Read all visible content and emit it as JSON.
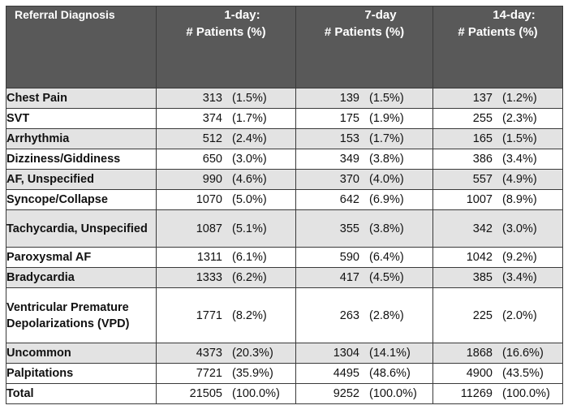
{
  "headers": {
    "diagnosis": "Referral Diagnosis",
    "d1": [
      "1-day:",
      "# Patients (%)"
    ],
    "d7": [
      "7-day",
      "# Patients (%)"
    ],
    "d14": [
      "14-day:",
      "# Patients (%)"
    ]
  },
  "rows": [
    {
      "label": "Chest Pain",
      "d1": [
        "313",
        "(1.5%)"
      ],
      "d7": [
        "139",
        "(1.5%)"
      ],
      "d14": [
        "137",
        "(1.2%)"
      ]
    },
    {
      "label": "SVT",
      "d1": [
        "374",
        "(1.7%)"
      ],
      "d7": [
        "175",
        "(1.9%)"
      ],
      "d14": [
        "255",
        "(2.3%)"
      ]
    },
    {
      "label": "Arrhythmia",
      "d1": [
        "512",
        "(2.4%)"
      ],
      "d7": [
        "153",
        "(1.7%)"
      ],
      "d14": [
        "165",
        "(1.5%)"
      ]
    },
    {
      "label": "Dizziness/Giddiness",
      "d1": [
        "650",
        "(3.0%)"
      ],
      "d7": [
        "349",
        "(3.8%)"
      ],
      "d14": [
        "386",
        "(3.4%)"
      ]
    },
    {
      "label": "AF, Unspecified",
      "d1": [
        "990",
        "(4.6%)"
      ],
      "d7": [
        "370",
        "(4.0%)"
      ],
      "d14": [
        "557",
        "(4.9%)"
      ]
    },
    {
      "label": "Syncope/Collapse",
      "d1": [
        "1070",
        "(5.0%)"
      ],
      "d7": [
        "642",
        "(6.9%)"
      ],
      "d14": [
        "1007",
        "(8.9%)"
      ]
    },
    {
      "label": "Tachycardia, Unspecified",
      "d1": [
        "1087",
        "(5.1%)"
      ],
      "d7": [
        "355",
        "(3.8%)"
      ],
      "d14": [
        "342",
        "(3.0%)"
      ]
    },
    {
      "label": "Paroxysmal AF",
      "d1": [
        "1311",
        "(6.1%)"
      ],
      "d7": [
        "590",
        "(6.4%)"
      ],
      "d14": [
        "1042",
        "(9.2%)"
      ]
    },
    {
      "label": "Bradycardia",
      "d1": [
        "1333",
        "(6.2%)"
      ],
      "d7": [
        "417",
        "(4.5%)"
      ],
      "d14": [
        "385",
        "(3.4%)"
      ]
    },
    {
      "label": "Ventricular Premature Depolarizations (VPD)",
      "d1": [
        "1771",
        "(8.2%)"
      ],
      "d7": [
        "263",
        "(2.8%)"
      ],
      "d14": [
        "225",
        "(2.0%)"
      ]
    },
    {
      "label": "Uncommon",
      "d1": [
        "4373",
        "(20.3%)"
      ],
      "d7": [
        "1304",
        "(14.1%)"
      ],
      "d14": [
        "1868",
        "(16.6%)"
      ]
    },
    {
      "label": "Palpitations",
      "d1": [
        "7721",
        "(35.9%)"
      ],
      "d7": [
        "4495",
        "(48.6%)"
      ],
      "d14": [
        "4900",
        "(43.5%)"
      ]
    },
    {
      "label": "Total",
      "d1": [
        "21505",
        "(100.0%)"
      ],
      "d7": [
        "9252",
        "(100.0%)"
      ],
      "d14": [
        "11269",
        "(100.0%)"
      ]
    }
  ]
}
